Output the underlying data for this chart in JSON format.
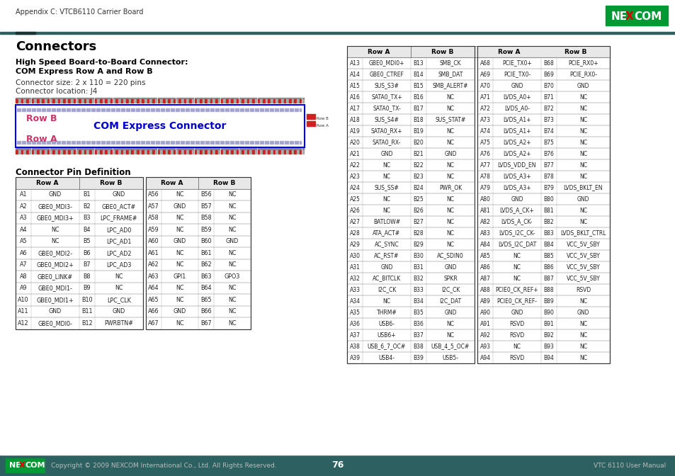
{
  "page_header": "Appendix C: VTCB6110 Carrier Board",
  "title": "Connectors",
  "subtitle_line1": "High Speed Board-to-Board Connector:",
  "subtitle_line2": "COM Express Row A and Row B",
  "connector_size": "Connector size: 2 x 110 = 220 pins",
  "connector_location": "Connector location: J4",
  "connector_diagram_label": "COM Express Connector",
  "row_b_label": "Row B",
  "row_a_label": "Row A",
  "table_title": "Connector Pin Definition",
  "left_table": [
    [
      "A1",
      "GND",
      "B1",
      "GND"
    ],
    [
      "A2",
      "GBE0_MDI3-",
      "B2",
      "GBE0_ACT#"
    ],
    [
      "A3",
      "GBE0_MDI3+",
      "B3",
      "LPC_FRAME#"
    ],
    [
      "A4",
      "NC",
      "B4",
      "LPC_AD0"
    ],
    [
      "A5",
      "NC",
      "B5",
      "LPC_AD1"
    ],
    [
      "A6",
      "GBE0_MDI2-",
      "B6",
      "LPC_AD2"
    ],
    [
      "A7",
      "GBE0_MDI2+",
      "B7",
      "LPC_AD3"
    ],
    [
      "A8",
      "GBE0_LINK#",
      "B8",
      "NC"
    ],
    [
      "A9",
      "GBE0_MDI1-",
      "B9",
      "NC"
    ],
    [
      "A10",
      "GBE0_MDI1+",
      "B10",
      "LPC_CLK"
    ],
    [
      "A11",
      "GND",
      "B11",
      "GND"
    ],
    [
      "A12",
      "GBE0_MDI0-",
      "B12",
      "PWRBTN#"
    ]
  ],
  "right_table": [
    [
      "A56",
      "NC",
      "B56",
      "NC"
    ],
    [
      "A57",
      "GND",
      "B57",
      "NC"
    ],
    [
      "A58",
      "NC",
      "B58",
      "NC"
    ],
    [
      "A59",
      "NC",
      "B59",
      "NC"
    ],
    [
      "A60",
      "GND",
      "B60",
      "GND"
    ],
    [
      "A61",
      "NC",
      "B61",
      "NC"
    ],
    [
      "A62",
      "NC",
      "B62",
      "NC"
    ],
    [
      "A63",
      "GPI1",
      "B63",
      "GPO3"
    ],
    [
      "A64",
      "NC",
      "B64",
      "NC"
    ],
    [
      "A65",
      "NC",
      "B65",
      "NC"
    ],
    [
      "A66",
      "GND",
      "B66",
      "NC"
    ],
    [
      "A67",
      "NC",
      "B67",
      "NC"
    ]
  ],
  "right_panel_table1": [
    [
      "A13",
      "GBE0_MDI0+",
      "B13",
      "SMB_CK"
    ],
    [
      "A14",
      "GBE0_CTREF",
      "B14",
      "SMB_DAT"
    ],
    [
      "A15",
      "SUS_S3#",
      "B15",
      "SMB_ALERT#"
    ],
    [
      "A16",
      "SATA0_TX+",
      "B16",
      "NC"
    ],
    [
      "A17",
      "SATA0_TX-",
      "B17",
      "NC"
    ],
    [
      "A18",
      "SUS_S4#",
      "B18",
      "SUS_STAT#"
    ],
    [
      "A19",
      "SATA0_RX+",
      "B19",
      "NC"
    ],
    [
      "A20",
      "SATA0_RX-",
      "B20",
      "NC"
    ],
    [
      "A21",
      "GND",
      "B21",
      "GND"
    ],
    [
      "A22",
      "NC",
      "B22",
      "NC"
    ],
    [
      "A23",
      "NC",
      "B23",
      "NC"
    ],
    [
      "A24",
      "SUS_SS#",
      "B24",
      "PWR_OK"
    ],
    [
      "A25",
      "NC",
      "B25",
      "NC"
    ],
    [
      "A26",
      "NC",
      "B26",
      "NC"
    ],
    [
      "A27",
      "BATLOW#",
      "B27",
      "NC"
    ],
    [
      "A28",
      "ATA_ACT#",
      "B28",
      "NC"
    ],
    [
      "A29",
      "AC_SYNC",
      "B29",
      "NC"
    ],
    [
      "A30",
      "AC_RST#",
      "B30",
      "AC_SDIN0"
    ],
    [
      "A31",
      "GND",
      "B31",
      "GND"
    ],
    [
      "A32",
      "AC_BITCLK",
      "B32",
      "SPKR"
    ],
    [
      "A33",
      "I2C_CK",
      "B33",
      "I2C_CK"
    ],
    [
      "A34",
      "NC",
      "B34",
      "I2C_DAT"
    ],
    [
      "A35",
      "THRM#",
      "B35",
      "GND"
    ],
    [
      "A36",
      "USB6-",
      "B36",
      "NC"
    ],
    [
      "A37",
      "USB6+",
      "B37",
      "NC"
    ],
    [
      "A38",
      "USB_6_7_OC#",
      "B38",
      "USB_4_5_OC#"
    ],
    [
      "A39",
      "USB4-",
      "B39",
      "USB5-"
    ]
  ],
  "right_panel_table2": [
    [
      "A68",
      "PCIE_TX0+",
      "B68",
      "PCIE_RX0+"
    ],
    [
      "A69",
      "PCIE_TX0-",
      "B69",
      "PCIE_RX0-"
    ],
    [
      "A70",
      "GND",
      "B70",
      "GND"
    ],
    [
      "A71",
      "LVDS_A0+",
      "B71",
      "NC"
    ],
    [
      "A72",
      "LVDS_A0-",
      "B72",
      "NC"
    ],
    [
      "A73",
      "LVDS_A1+",
      "B73",
      "NC"
    ],
    [
      "A74",
      "LVDS_A1+",
      "B74",
      "NC"
    ],
    [
      "A75",
      "LVDS_A2+",
      "B75",
      "NC"
    ],
    [
      "A76",
      "LVDS_A2+",
      "B76",
      "NC"
    ],
    [
      "A77",
      "LVDS_VDD_EN",
      "B77",
      "NC"
    ],
    [
      "A78",
      "LVDS_A3+",
      "B78",
      "NC"
    ],
    [
      "A79",
      "LVDS_A3+",
      "B79",
      "LVDS_BKLT_EN"
    ],
    [
      "A80",
      "GND",
      "B80",
      "GND"
    ],
    [
      "A81",
      "LVDS_A_CK+",
      "B81",
      "NC"
    ],
    [
      "A82",
      "LVDS_A_CK-",
      "B82",
      "NC"
    ],
    [
      "A83",
      "LVDS_I2C_CK-",
      "B83",
      "LVDS_BKLT_CTRL"
    ],
    [
      "A84",
      "LVDS_I2C_DAT",
      "B84",
      "VCC_5V_SBY"
    ],
    [
      "A85",
      "NC",
      "B85",
      "VCC_5V_SBY"
    ],
    [
      "A86",
      "NC",
      "B86",
      "VCC_5V_SBY"
    ],
    [
      "A87",
      "NC",
      "B87",
      "VCC_5V_SBY"
    ],
    [
      "A88",
      "PCIE0_CK_REF+",
      "B88",
      "RSVD"
    ],
    [
      "A89",
      "PCIE0_CK_REF-",
      "B89",
      "NC"
    ],
    [
      "A90",
      "GND",
      "B90",
      "GND"
    ],
    [
      "A91",
      "RSVD",
      "B91",
      "NC"
    ],
    [
      "A92",
      "RSVD",
      "B92",
      "NC"
    ],
    [
      "A93",
      "NC",
      "B93",
      "NC"
    ],
    [
      "A94",
      "RSVD",
      "B94",
      "NC"
    ]
  ],
  "footer_copyright": "Copyright © 2009 NEXCOM International Co., Ltd. All Rights Reserved.",
  "page_number": "76",
  "product_name": "VTC 6110 User Manual",
  "teal_dark": "#2d6060",
  "teal_bar": "#336666",
  "green_logo": "#009933",
  "red_x": "#dd0000",
  "row_pink": "#cc3366",
  "blue_connector": "#0000cc",
  "header_gray": "#e8e8e8"
}
